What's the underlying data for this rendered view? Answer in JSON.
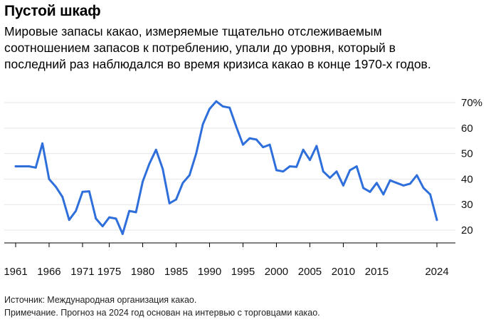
{
  "header": {
    "title": "Пустой шкаф",
    "subtitle_lines": [
      "Мировые запасы какао, измеряемые тщательно отслеживаемым",
      "соотношением запасов к потреблению, упали до уровня, который в",
      "последний раз наблюдался во время кризиса какао в конце 1970-х годов."
    ]
  },
  "footer": {
    "source": "Источник: Международная организация какао.",
    "note": "Примечание. Прогноз на 2024 год основан на интервью с торговцами какао."
  },
  "colors": {
    "line": "#2f6fdc",
    "grid": "#e6e6e6",
    "axis": "#000000"
  },
  "chart_data": {
    "type": "line",
    "title": "Пустой шкаф",
    "xlabel": "",
    "ylabel": "",
    "unit_suffix": "%",
    "ylim": [
      15,
      72
    ],
    "xlim": [
      1960,
      2027
    ],
    "y_ticks": [
      20,
      30,
      40,
      50,
      60,
      70
    ],
    "y_tick_labels": [
      "20",
      "30",
      "40",
      "50",
      "60",
      "70%"
    ],
    "x_ticks": [
      1961,
      1966,
      1971,
      1975,
      1980,
      1985,
      1990,
      1995,
      2000,
      2005,
      2010,
      2015,
      2024
    ],
    "x_tick_labels": [
      "1961",
      "1966",
      "1971",
      "1975",
      "1980",
      "1985",
      "1990",
      "1995",
      "2000",
      "2005",
      "2010",
      "2015",
      "2024"
    ],
    "grid": true,
    "series": [
      {
        "name": "Соотношение запасов к потреблению",
        "x": [
          1961,
          1962,
          1963,
          1964,
          1965,
          1966,
          1967,
          1968,
          1969,
          1970,
          1971,
          1972,
          1973,
          1974,
          1975,
          1976,
          1977,
          1978,
          1979,
          1980,
          1981,
          1982,
          1983,
          1984,
          1985,
          1986,
          1987,
          1988,
          1989,
          1990,
          1991,
          1992,
          1993,
          1994,
          1995,
          1996,
          1997,
          1998,
          1999,
          2000,
          2001,
          2002,
          2003,
          2004,
          2005,
          2006,
          2007,
          2008,
          2009,
          2010,
          2011,
          2012,
          2013,
          2014,
          2015,
          2016,
          2017,
          2018,
          2019,
          2020,
          2021,
          2022,
          2023,
          2024
        ],
        "values": [
          45,
          45,
          45,
          44.5,
          54,
          40,
          37,
          33,
          24,
          27.5,
          35,
          35.2,
          24.5,
          21.5,
          25,
          24.5,
          18.5,
          27.5,
          27,
          39,
          46,
          51.5,
          44,
          30.5,
          32,
          38.5,
          41.5,
          50,
          61.5,
          67.5,
          70.5,
          68.5,
          68,
          60.5,
          53.5,
          56,
          55.5,
          52.5,
          53.5,
          43.5,
          43,
          45,
          44.8,
          51.5,
          47.5,
          53,
          43,
          40.5,
          43,
          37.5,
          43.5,
          45,
          36.5,
          35,
          38.5,
          34,
          39.5,
          38.5,
          37.5,
          38.2,
          41.5,
          36.5,
          34,
          24
        ]
      }
    ]
  }
}
